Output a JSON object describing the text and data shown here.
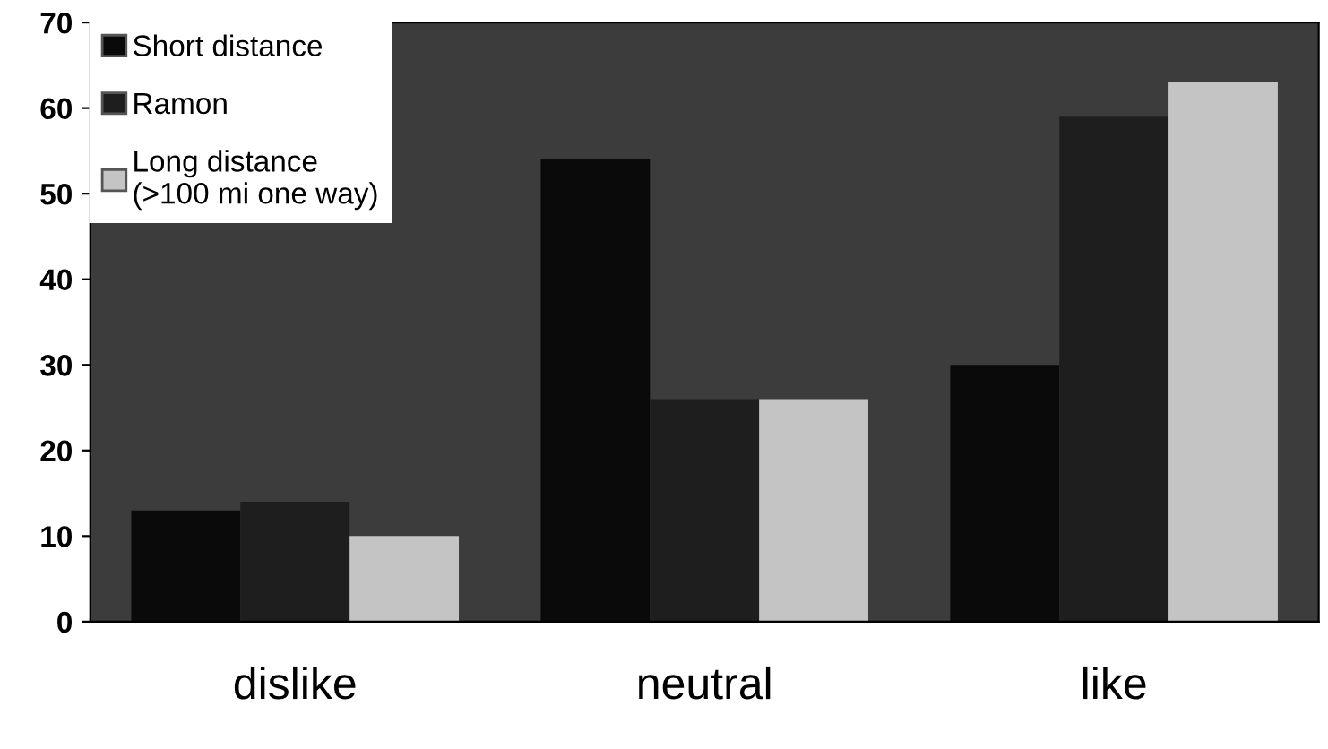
{
  "chart_data": {
    "type": "bar",
    "categories": [
      "dislike",
      "neutral",
      "like"
    ],
    "series": [
      {
        "name": "Short distance",
        "color": "#0a0a0a",
        "values": [
          13,
          54,
          30
        ]
      },
      {
        "name": "Ramon",
        "color": "#1e1e1e",
        "values": [
          14,
          26,
          59
        ]
      },
      {
        "name": "Long distance\n(>100 mi one way)",
        "color": "#c4c4c4",
        "values": [
          10,
          26,
          63
        ]
      }
    ],
    "ylim": [
      0,
      70
    ],
    "yticks": [
      0,
      10,
      20,
      30,
      40,
      50,
      60,
      70
    ],
    "grid": false,
    "legend": "top left"
  }
}
